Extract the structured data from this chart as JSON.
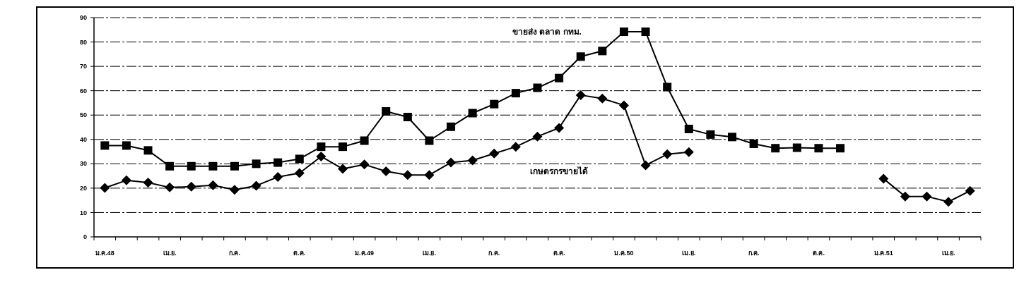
{
  "chart_data": {
    "type": "line",
    "categories": [
      "ม.ค.48",
      null,
      null,
      "เม.ย.",
      null,
      null,
      "ก.ค.",
      null,
      null,
      "ต.ค.",
      null,
      null,
      "ม.ค.49",
      null,
      null,
      "เม.ย.",
      null,
      null,
      "ก.ค.",
      null,
      null,
      "ต.ค.",
      null,
      null,
      "ม.ค.50",
      null,
      null,
      "เม.ย.",
      null,
      null,
      "ก.ค.",
      null,
      null,
      "ต.ค.",
      null,
      null,
      "ม.ค.51",
      null,
      null,
      "เม.ย.",
      null
    ],
    "series": [
      {
        "name": "ขายส่ง ตลาด กทม.",
        "color": "#000000",
        "marker": "square",
        "values": [
          37.5,
          37.5,
          35.5,
          29,
          29,
          29,
          29,
          30,
          30.5,
          32,
          37,
          37,
          39.5,
          51.5,
          49.2,
          39.5,
          45.2,
          50.8,
          54.5,
          59,
          61.2,
          65.2,
          74,
          76.3,
          84.2,
          84.2,
          61.5,
          44.3,
          42,
          41,
          38.2,
          36.4,
          36.6,
          36.4,
          36.4,
          null,
          null,
          null,
          null,
          null,
          null
        ]
      },
      {
        "name": "เกษตรกรขายได้",
        "color": "#000000",
        "marker": "diamond",
        "values": [
          20.1,
          23.2,
          22.3,
          20.3,
          20.6,
          21.2,
          19.3,
          21,
          24.6,
          26.2,
          33,
          27.9,
          29.7,
          26.9,
          25.4,
          25.4,
          30.5,
          31.4,
          34.2,
          37,
          41.2,
          44.7,
          58.2,
          56.8,
          54,
          29.4,
          33.9,
          34.8,
          null,
          null,
          null,
          null,
          null,
          null,
          null,
          null,
          23.9,
          16.6,
          16.6,
          14.4,
          18.9
        ]
      }
    ],
    "ylim": [
      0,
      90
    ],
    "yticks": [
      0,
      10,
      20,
      30,
      40,
      50,
      60,
      70,
      80,
      90
    ],
    "grid": "y",
    "line_style": "solid"
  }
}
